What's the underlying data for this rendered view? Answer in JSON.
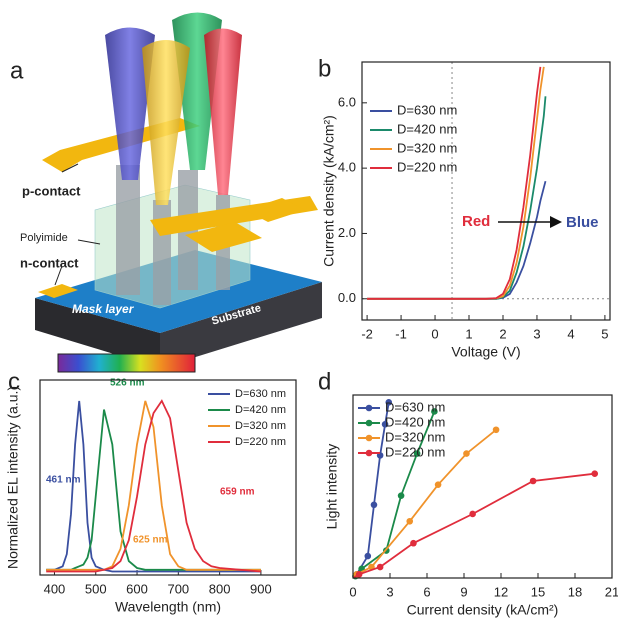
{
  "panel_labels": [
    "a",
    "b",
    "c",
    "d"
  ],
  "diagram": {
    "labels": [
      "p-contact",
      "Polyimide",
      "n-contact",
      "Mask layer",
      "Substrate"
    ]
  },
  "chart_data": [
    {
      "type": "line",
      "x_label": "Voltage (V)",
      "y_label": "Current density (kA/cm²)",
      "xlim": [
        -2.15,
        5.15
      ],
      "xticks": [
        -2,
        -1,
        0,
        1,
        2,
        3,
        4,
        5
      ],
      "ylim": [
        -0.65,
        7.25
      ],
      "yticks": [
        {
          "value": 0,
          "label": "0.0"
        },
        {
          "value": 2,
          "label": "2.0"
        },
        {
          "value": 4,
          "label": "4.0"
        },
        {
          "value": 6,
          "label": "6.0"
        }
      ],
      "ref_x": 0.5,
      "ref_y": 0,
      "x": [
        -2,
        -1,
        0,
        1,
        1.5,
        1.8,
        2.0,
        2.2,
        2.4,
        2.6,
        2.8,
        3.0,
        3.1,
        3.2,
        3.25
      ],
      "series": [
        {
          "name": "D=630 nm",
          "color": "#3a4fa0",
          "values": [
            0,
            0,
            0,
            0,
            0,
            0,
            0.03,
            0.15,
            0.5,
            1.0,
            1.7,
            2.5,
            3.0,
            3.4,
            3.6
          ]
        },
        {
          "name": "D=420 nm",
          "color": "#1b8a6b",
          "values": [
            0,
            0,
            0,
            0,
            0,
            0,
            0.05,
            0.25,
            0.8,
            1.6,
            2.7,
            4.0,
            4.8,
            5.6,
            6.2
          ]
        },
        {
          "name": "D=320 nm",
          "color": "#f0932b",
          "values": [
            0,
            0,
            0,
            0,
            0,
            0.01,
            0.08,
            0.4,
            1.1,
            2.2,
            3.7,
            5.5,
            6.4,
            7.1,
            null
          ]
        },
        {
          "name": "D=220 nm",
          "color": "#e02d3c",
          "values": [
            0,
            0,
            0,
            0,
            0,
            0.02,
            0.15,
            0.6,
            1.5,
            2.8,
            4.4,
            6.3,
            7.1,
            null,
            null
          ]
        }
      ],
      "annotations": [
        {
          "text": "Red",
          "color": "#e02d3c"
        },
        {
          "text": "Blue",
          "color": "#3a4fa0"
        }
      ]
    },
    {
      "type": "line",
      "x_label": "Wavelength (nm)",
      "y_label": "Normalized EL intensity (a.u.)",
      "xlim": [
        365,
        985
      ],
      "xticks": [
        400,
        500,
        600,
        700,
        800,
        900
      ],
      "ylim": [
        0,
        1.12
      ],
      "x": [
        380,
        400,
        420,
        430,
        440,
        450,
        460,
        470,
        480,
        490,
        500,
        520,
        540,
        560,
        580,
        600,
        620,
        640,
        660,
        680,
        700,
        720,
        740,
        760,
        780,
        800,
        850,
        900
      ],
      "series": [
        {
          "name": "D=630 nm",
          "color": "#3a4fa0",
          "peak_label": "461 nm",
          "values": [
            0.03,
            0.03,
            0.05,
            0.12,
            0.35,
            0.75,
            1.0,
            0.75,
            0.3,
            0.1,
            0.05,
            0.03,
            0.02,
            0.02,
            0.02,
            0.02,
            0.02,
            0.02,
            0.02,
            0.02,
            0.02,
            0.02,
            0.02,
            0.02,
            0.02,
            0.02,
            0.02,
            0.02
          ]
        },
        {
          "name": "D=420 nm",
          "color": "#1b8a4a",
          "peak_label": "526 nm",
          "values": [
            0.03,
            0.03,
            0.03,
            0.03,
            0.03,
            0.04,
            0.05,
            0.06,
            0.1,
            0.2,
            0.45,
            0.95,
            0.75,
            0.25,
            0.08,
            0.04,
            0.03,
            0.03,
            0.03,
            0.03,
            0.03,
            0.03,
            0.03,
            0.03,
            0.03,
            0.03,
            0.03,
            0.03
          ]
        },
        {
          "name": "D=320 nm",
          "color": "#f0932b",
          "peak_label": "625 nm",
          "values": [
            0.03,
            0.03,
            0.03,
            0.03,
            0.03,
            0.03,
            0.03,
            0.03,
            0.03,
            0.03,
            0.03,
            0.03,
            0.05,
            0.15,
            0.4,
            0.75,
            1.0,
            0.85,
            0.4,
            0.12,
            0.05,
            0.03,
            0.03,
            0.03,
            0.03,
            0.03,
            0.03,
            0.03
          ]
        },
        {
          "name": "D=220 nm",
          "color": "#e02d3c",
          "peak_label": "659 nm",
          "values": [
            0.02,
            0.02,
            0.02,
            0.02,
            0.02,
            0.02,
            0.02,
            0.02,
            0.02,
            0.02,
            0.02,
            0.03,
            0.04,
            0.08,
            0.2,
            0.45,
            0.75,
            0.93,
            1.0,
            0.9,
            0.6,
            0.3,
            0.15,
            0.08,
            0.05,
            0.04,
            0.03,
            0.02
          ]
        }
      ]
    },
    {
      "type": "line",
      "markers": true,
      "x_label": "Current density (kA/cm²)",
      "y_label": "Light intensity",
      "xlim": [
        0,
        21
      ],
      "xticks": [
        0,
        3,
        6,
        9,
        12,
        15,
        18,
        21
      ],
      "ylim": [
        0,
        1
      ],
      "series": [
        {
          "name": "D=630 nm",
          "color": "#3a4fa0",
          "x": [
            0,
            0.3,
            1.2,
            1.7,
            2.2,
            2.6,
            2.9
          ],
          "values": [
            0,
            0.02,
            0.12,
            0.4,
            0.67,
            0.84,
            0.96
          ]
        },
        {
          "name": "D=420 nm",
          "color": "#1b8a4a",
          "x": [
            0,
            0.2,
            0.7,
            2.7,
            3.9,
            5.2,
            6.6
          ],
          "values": [
            0,
            0.01,
            0.05,
            0.15,
            0.45,
            0.68,
            0.91
          ]
        },
        {
          "name": "D=320 nm",
          "color": "#f0932b",
          "x": [
            0,
            0.3,
            1.5,
            4.6,
            6.9,
            9.2,
            11.6
          ],
          "values": [
            0,
            0.02,
            0.06,
            0.31,
            0.51,
            0.68,
            0.81
          ]
        },
        {
          "name": "D=220 nm",
          "color": "#e02d3c",
          "x": [
            0,
            0.5,
            2.2,
            4.9,
            9.7,
            14.6,
            19.6
          ],
          "values": [
            0,
            0.02,
            0.06,
            0.19,
            0.35,
            0.53,
            0.57
          ]
        }
      ]
    }
  ]
}
